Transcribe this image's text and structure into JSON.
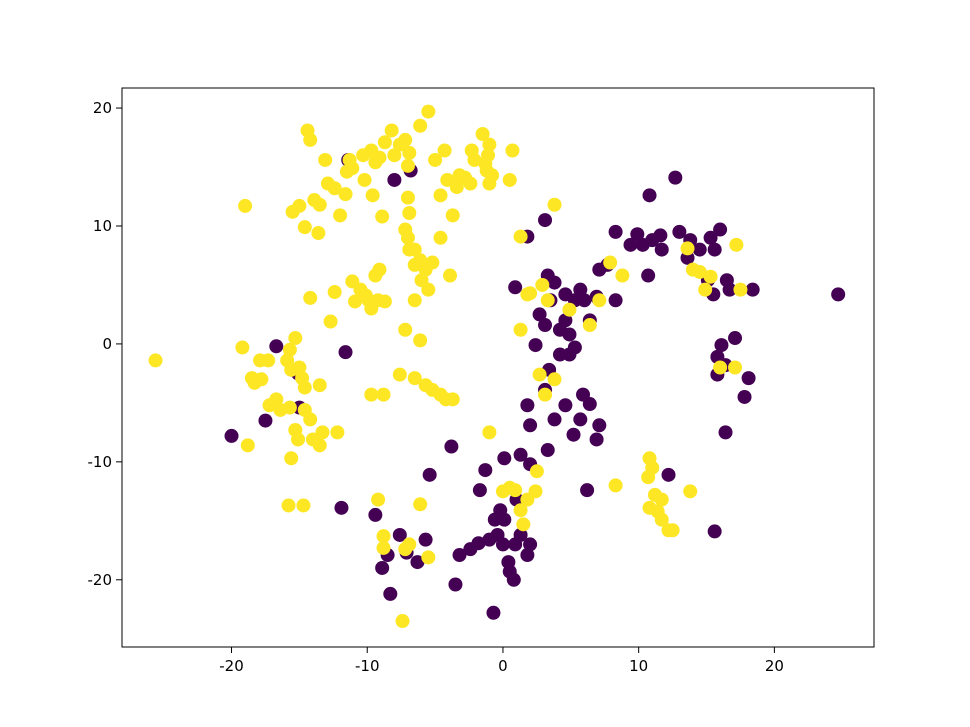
{
  "chart_data": {
    "type": "scatter",
    "xlim": [
      -28.07,
      27.34
    ],
    "ylim": [
      -25.7,
      21.7
    ],
    "xticks": [
      -20,
      -10,
      0,
      10,
      20
    ],
    "yticks": [
      -20,
      -10,
      0,
      10,
      20
    ],
    "series": [
      {
        "color": "#440154",
        "x": [
          -20.0,
          -17.5,
          -16.7,
          -15.1,
          -15.0,
          -11.9,
          -11.6,
          -11.4,
          -8.0,
          -6.8,
          -9.4,
          -8.5,
          -8.9,
          -8.3,
          -7.6,
          -7.1,
          -6.3,
          -5.7,
          -5.4,
          -3.8,
          -3.5,
          -3.2,
          -2.4,
          -1.8,
          -1.3,
          -1.0,
          -0.6,
          -0.7,
          -0.4,
          -0.2,
          0.1,
          0.0,
          0.4,
          0.5,
          0.8,
          1.0,
          0.9,
          1.3,
          1.8,
          2.0,
          1.8,
          2.0,
          2.4,
          2.7,
          3.1,
          1.8,
          3.1,
          3.3,
          3.5,
          3.8,
          4.2,
          4.6,
          4.6,
          5.3,
          5.7,
          4.9,
          4.9,
          6.0,
          5.9,
          5.7,
          5.2,
          4.6,
          3.8,
          3.4,
          3.1,
          3.3,
          4.2,
          6.4,
          6.9,
          7.1,
          8.3,
          6.2,
          6.4,
          7.1,
          6.9,
          8.3,
          9.4,
          9.9,
          10.3,
          10.7,
          10.8,
          11.0,
          11.6,
          11.7,
          12.2,
          12.7,
          13.0,
          13.6,
          13.8,
          14.5,
          15.1,
          15.3,
          15.6,
          16.0,
          15.5,
          15.6,
          15.8,
          15.8,
          16.1,
          16.4,
          16.5,
          16.7,
          16.4,
          17.1,
          18.1,
          17.8,
          18.4,
          24.7,
          7.7,
          5.3,
          1.3,
          2.0,
          0.1,
          -1.7,
          0.9
        ],
        "y": [
          -7.8,
          -6.5,
          -0.2,
          -2.5,
          -5.4,
          -13.9,
          -0.7,
          15.6,
          13.9,
          14.7,
          -14.5,
          -17.9,
          -19.0,
          -21.2,
          -16.2,
          -17.7,
          -18.5,
          -16.6,
          -11.1,
          -8.7,
          -20.4,
          -17.9,
          -17.4,
          -16.9,
          -10.7,
          -16.6,
          -14.9,
          -22.8,
          -16.2,
          -14.1,
          -14.9,
          -17.0,
          -18.5,
          -19.3,
          -20.0,
          -13.2,
          -17.0,
          -16.2,
          -17.9,
          -17.0,
          -5.2,
          -6.9,
          -0.1,
          2.5,
          10.5,
          9.1,
          1.6,
          5.8,
          3.7,
          5.2,
          1.2,
          2.0,
          4.2,
          3.7,
          4.6,
          0.8,
          -0.9,
          3.7,
          -4.3,
          -6.4,
          -7.7,
          -5.2,
          -6.4,
          -2.2,
          -3.9,
          -9.0,
          -0.9,
          2.0,
          4.0,
          6.3,
          3.7,
          -12.4,
          -5.1,
          -6.9,
          -8.1,
          9.5,
          8.4,
          9.3,
          8.4,
          5.8,
          12.6,
          8.8,
          9.2,
          8.0,
          -11.1,
          14.1,
          9.5,
          7.3,
          8.8,
          8.0,
          5.4,
          9.0,
          8.0,
          9.7,
          4.2,
          -15.9,
          -2.6,
          -1.1,
          -0.1,
          -1.8,
          5.4,
          4.6,
          -7.5,
          0.5,
          -2.9,
          -4.5,
          4.6,
          4.2,
          6.7,
          -0.3,
          -9.4,
          -10.2,
          -9.7,
          -12.4,
          4.8
        ]
      },
      {
        "color": "#fde725",
        "x": [
          -25.6,
          -19.0,
          -19.2,
          -18.8,
          -18.5,
          -18.3,
          -17.9,
          -17.8,
          -17.3,
          -17.2,
          -16.7,
          -16.4,
          -15.9,
          -15.7,
          -15.6,
          -15.3,
          -15.7,
          -15.6,
          -15.3,
          -15.1,
          -15.0,
          -14.8,
          -14.6,
          -14.6,
          -14.2,
          -14.0,
          -13.5,
          -13.3,
          -13.5,
          -12.2,
          -15.8,
          -14.7,
          -15.5,
          -15.0,
          -14.6,
          -14.2,
          -14.2,
          -14.4,
          -13.9,
          -13.5,
          -13.1,
          -12.9,
          -12.7,
          -12.4,
          -12.4,
          -12.0,
          -11.6,
          -11.5,
          -11.3,
          -11.1,
          -10.9,
          -10.5,
          -10.1,
          -9.9,
          -9.7,
          -9.4,
          -9.2,
          -9.1,
          -8.7,
          -9.7,
          -9.4,
          -9.6,
          -9.1,
          -8.9,
          -8.7,
          -8.2,
          -8.0,
          -7.6,
          -7.2,
          -7.0,
          -6.9,
          -6.5,
          -7.0,
          -6.9,
          -7.2,
          -7.0,
          -6.9,
          -6.5,
          -6.5,
          -6.1,
          -6.0,
          -5.7,
          -5.5,
          -5.2,
          -5.5,
          -6.1,
          -6.1,
          -7.2,
          -4.6,
          -5.0,
          -4.6,
          -4.3,
          -4.1,
          -3.9,
          -3.7,
          -3.4,
          -3.2,
          -2.8,
          -2.4,
          -2.3,
          -2.1,
          -1.5,
          -1.3,
          -1.1,
          -1.2,
          -1.0,
          -0.8,
          -1.0,
          0.7,
          0.5,
          1.3,
          2.0,
          1.3,
          1.8,
          0.9,
          1.3,
          1.8,
          2.4,
          2.5,
          1.5,
          0.0,
          0.5,
          2.7,
          3.1,
          3.8,
          3.8,
          3.3,
          2.9,
          4.9,
          6.4,
          7.1,
          7.9,
          8.8,
          8.3,
          10.8,
          11.0,
          10.7,
          11.2,
          11.7,
          10.8,
          11.4,
          11.7,
          12.2,
          12.5,
          13.8,
          13.6,
          14.0,
          14.5,
          14.9,
          15.3,
          17.2,
          17.5,
          16.0,
          17.1,
          -8.8,
          -8.8,
          -6.9,
          -7.2,
          -9.2,
          -7.4,
          -5.5,
          -6.1,
          -1.0,
          -9.7,
          -8.8,
          -7.6,
          -13.6,
          -11.1,
          -10.3,
          -10.2,
          -6.5,
          -5.7,
          -5.2,
          -4.6,
          -4.2,
          -3.7
        ],
        "y": [
          -1.4,
          11.7,
          -0.3,
          -8.6,
          -2.9,
          -3.3,
          -1.4,
          -3.0,
          -1.4,
          -5.2,
          -4.7,
          -5.6,
          -1.4,
          -0.5,
          -2.2,
          0.5,
          -5.4,
          -9.7,
          -7.3,
          -8.1,
          -2.0,
          -2.9,
          -3.7,
          -5.6,
          -6.4,
          -8.1,
          -8.6,
          -7.5,
          -3.5,
          -7.5,
          -13.7,
          -13.7,
          11.2,
          11.7,
          9.9,
          3.9,
          17.3,
          18.1,
          12.2,
          11.8,
          15.6,
          13.6,
          1.9,
          13.2,
          4.4,
          10.9,
          12.7,
          14.6,
          15.6,
          5.3,
          3.6,
          4.6,
          4.1,
          3.7,
          3.0,
          5.8,
          3.7,
          6.3,
          3.6,
          16.4,
          15.4,
          12.6,
          15.8,
          10.8,
          17.1,
          18.1,
          16.0,
          16.9,
          17.3,
          15.1,
          16.2,
          8.0,
          12.4,
          11.1,
          9.7,
          9.0,
          8.0,
          6.7,
          3.7,
          7.1,
          5.4,
          6.3,
          4.6,
          6.9,
          19.7,
          18.5,
          0.3,
          1.2,
          9.0,
          15.6,
          12.6,
          16.4,
          13.9,
          5.8,
          10.9,
          13.3,
          14.3,
          14.1,
          13.6,
          16.4,
          15.6,
          17.8,
          15.3,
          16.0,
          14.7,
          16.9,
          14.3,
          13.6,
          16.4,
          13.9,
          9.1,
          4.3,
          1.2,
          4.2,
          -12.4,
          -14.1,
          -13.2,
          -12.5,
          -10.8,
          -15.3,
          -12.5,
          -12.2,
          -2.6,
          -4.3,
          -3.0,
          11.8,
          3.7,
          5.0,
          2.9,
          1.6,
          3.7,
          6.9,
          5.8,
          -12.0,
          -9.7,
          -10.5,
          -11.3,
          -12.8,
          -13.2,
          -13.9,
          -14.2,
          -14.9,
          -15.8,
          -15.8,
          -12.5,
          8.1,
          6.3,
          6.1,
          4.6,
          5.7,
          8.4,
          4.6,
          -2.0,
          -2.0,
          -16.3,
          -17.3,
          -17.0,
          -17.4,
          -13.2,
          -23.5,
          -18.1,
          -13.6,
          -7.5,
          -4.3,
          -4.3,
          -2.6,
          9.4,
          14.9,
          16.0,
          13.9,
          -2.9,
          -3.5,
          -3.9,
          -4.3,
          -4.7,
          -4.7
        ]
      }
    ]
  }
}
